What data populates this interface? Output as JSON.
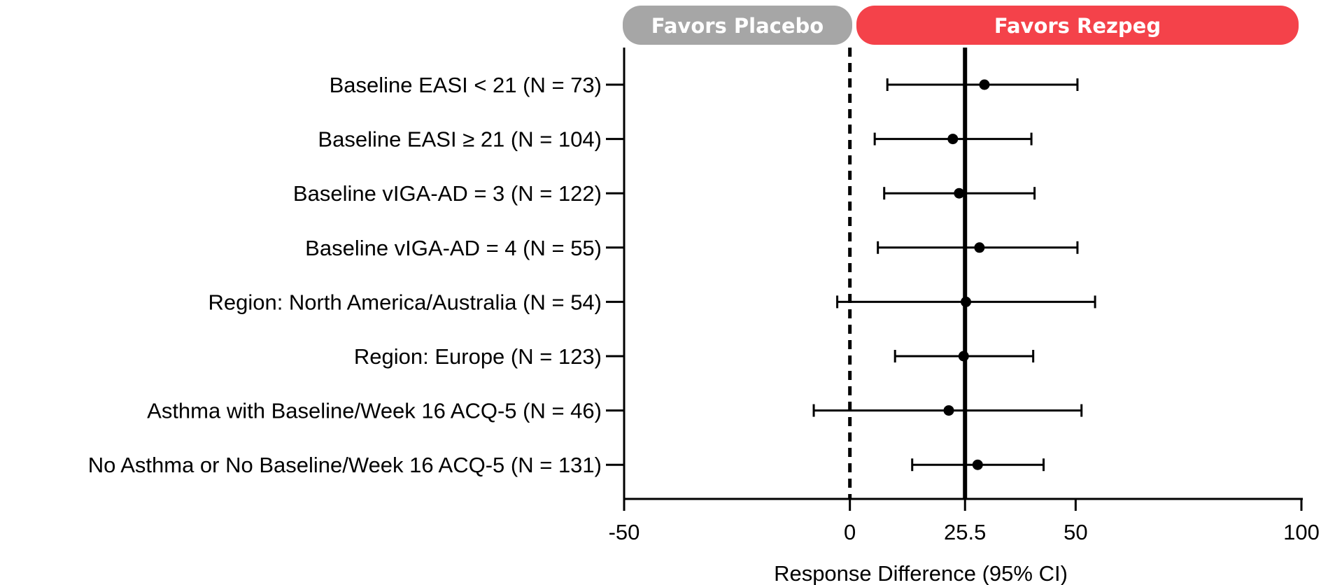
{
  "banners": {
    "left": {
      "label": "Favors Placebo",
      "color": "#a6a6a6"
    },
    "right": {
      "label": "Favors Rezpeg",
      "color": "#f4424a"
    }
  },
  "chart_data": {
    "type": "forest",
    "xlabel": "Response Difference (95% CI)",
    "xlim": [
      -50,
      100
    ],
    "xticks": [
      -50,
      0,
      25.5,
      50,
      100
    ],
    "xtick_labels": [
      "-50",
      "0",
      "25.5",
      "50",
      "100"
    ],
    "reference_lines": [
      {
        "x": 0,
        "style": "dashed"
      },
      {
        "x": 25.5,
        "style": "solid"
      }
    ],
    "rows": [
      {
        "label": "Baseline EASI < 21 (N = 73)",
        "estimate": 29.8,
        "lower": 8.3,
        "upper": 50.4
      },
      {
        "label": "Baseline EASI ≥ 21 (N = 104)",
        "estimate": 22.8,
        "lower": 5.5,
        "upper": 40.2
      },
      {
        "label": "Baseline vIGA-AD = 3 (N = 122)",
        "estimate": 24.2,
        "lower": 7.6,
        "upper": 40.9
      },
      {
        "label": "Baseline vIGA-AD = 4 (N = 55)",
        "estimate": 28.7,
        "lower": 6.2,
        "upper": 50.4
      },
      {
        "label": "Region: North America/Australia (N = 54)",
        "estimate": 25.7,
        "lower": -2.8,
        "upper": 54.3
      },
      {
        "label": "Region: Europe (N = 123)",
        "estimate": 25.2,
        "lower": 10.0,
        "upper": 40.6
      },
      {
        "label": "Asthma with Baseline/Week 16 ACQ-5 (N = 46)",
        "estimate": 21.9,
        "lower": -8.0,
        "upper": 51.3
      },
      {
        "label": "No Asthma or No Baseline/Week 16 ACQ-5 (N = 131)",
        "estimate": 28.3,
        "lower": 13.8,
        "upper": 42.9
      }
    ]
  }
}
